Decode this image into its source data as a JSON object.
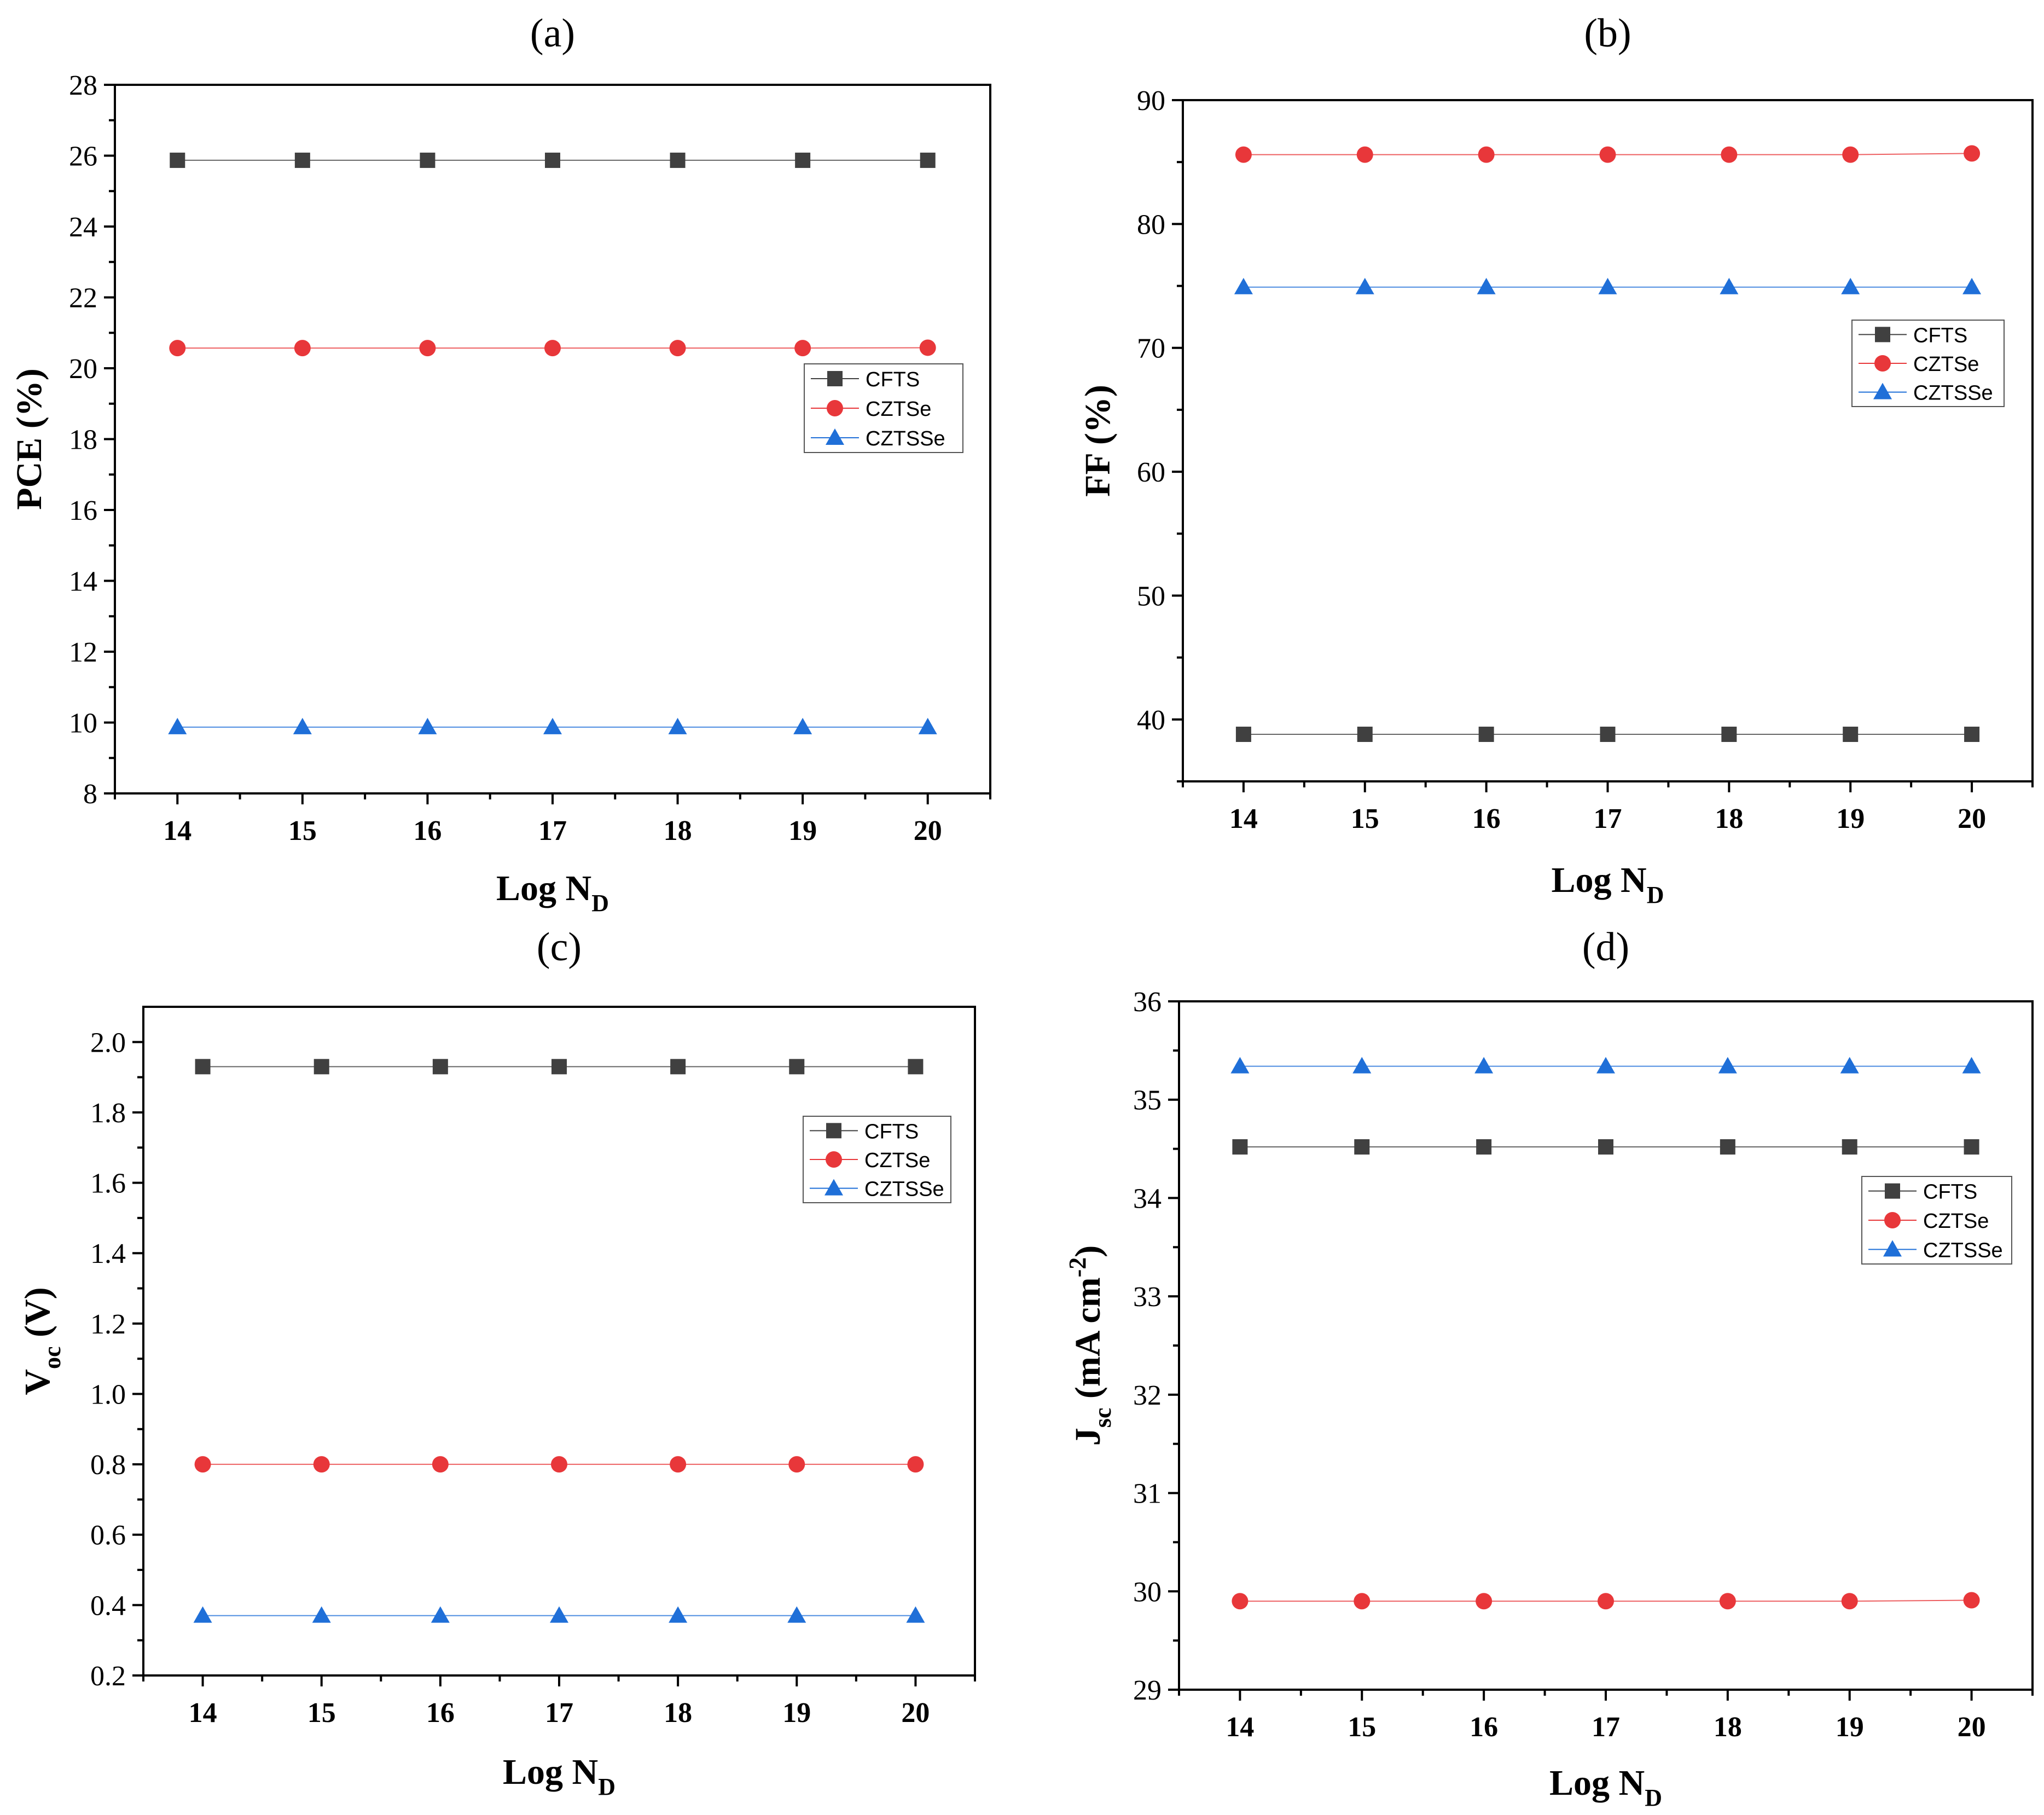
{
  "figure": {
    "panels": [
      "a",
      "b",
      "c",
      "d"
    ]
  },
  "colors": {
    "CFTS": "#404040",
    "CZTSe": "#e8373a",
    "CZTSSe": "#1f6fd8",
    "axis": "#000000"
  },
  "chart_data": [
    {
      "id": "a",
      "panel_label": "(a)",
      "type": "line",
      "title": "",
      "xlabel": "Log N",
      "xlabel_sub": "D",
      "ylabel": "PCE (%)",
      "x": [
        14,
        15,
        16,
        17,
        18,
        19,
        20
      ],
      "xlim": [
        13.5,
        20.5
      ],
      "ylim": [
        8,
        28
      ],
      "yticks": [
        8,
        10,
        12,
        14,
        16,
        18,
        20,
        22,
        24,
        26,
        28
      ],
      "ytick_labels": [
        "8",
        "10",
        "12",
        "14",
        "16",
        "18",
        "20",
        "22",
        "24",
        "26",
        "28"
      ],
      "legend_position": "center-right",
      "series": [
        {
          "name": "CFTS",
          "marker": "square",
          "values": [
            25.87,
            25.87,
            25.87,
            25.87,
            25.87,
            25.87,
            25.87
          ]
        },
        {
          "name": "CZTSe",
          "marker": "circle",
          "values": [
            20.57,
            20.57,
            20.57,
            20.57,
            20.57,
            20.57,
            20.58
          ]
        },
        {
          "name": "CZTSSe",
          "marker": "triangle",
          "values": [
            9.87,
            9.87,
            9.87,
            9.87,
            9.87,
            9.87,
            9.87
          ]
        }
      ]
    },
    {
      "id": "b",
      "panel_label": "(b)",
      "type": "line",
      "title": "",
      "xlabel": "Log N",
      "xlabel_sub": "D",
      "ylabel": "FF (%)",
      "x": [
        14,
        15,
        16,
        17,
        18,
        19,
        20
      ],
      "xlim": [
        13.5,
        20.5
      ],
      "ylim": [
        35,
        90
      ],
      "yticks": [
        40,
        50,
        60,
        70,
        80,
        90
      ],
      "ytick_labels": [
        "40",
        "50",
        "60",
        "70",
        "80",
        "90"
      ],
      "legend_position": "center-right",
      "series": [
        {
          "name": "CFTS",
          "marker": "square",
          "values": [
            38.8,
            38.8,
            38.8,
            38.8,
            38.8,
            38.8,
            38.8
          ]
        },
        {
          "name": "CZTSe",
          "marker": "circle",
          "values": [
            85.6,
            85.6,
            85.6,
            85.6,
            85.6,
            85.6,
            85.7
          ]
        },
        {
          "name": "CZTSSe",
          "marker": "triangle",
          "values": [
            74.9,
            74.9,
            74.9,
            74.9,
            74.9,
            74.9,
            74.9
          ]
        }
      ]
    },
    {
      "id": "c",
      "panel_label": "(c)",
      "type": "line",
      "title": "",
      "xlabel": "Log N",
      "xlabel_sub": "D",
      "ylabel": "V",
      "ylabel_sub": "oc",
      "ylabel_suffix": " (V)",
      "x": [
        14,
        15,
        16,
        17,
        18,
        19,
        20
      ],
      "xlim": [
        13.5,
        20.5
      ],
      "ylim": [
        0.2,
        2.1
      ],
      "yticks": [
        0.2,
        0.4,
        0.6,
        0.8,
        1.0,
        1.2,
        1.4,
        1.6,
        1.8,
        2.0
      ],
      "ytick_labels": [
        "0.2",
        "0.4",
        "0.6",
        "0.8",
        "1.0",
        "1.2",
        "1.4",
        "1.6",
        "1.8",
        "2.0"
      ],
      "legend_position": "top-right",
      "series": [
        {
          "name": "CFTS",
          "marker": "square",
          "values": [
            1.93,
            1.93,
            1.93,
            1.93,
            1.93,
            1.93,
            1.93
          ]
        },
        {
          "name": "CZTSe",
          "marker": "circle",
          "values": [
            0.8,
            0.8,
            0.8,
            0.8,
            0.8,
            0.8,
            0.8
          ]
        },
        {
          "name": "CZTSSe",
          "marker": "triangle",
          "values": [
            0.37,
            0.37,
            0.37,
            0.37,
            0.37,
            0.37,
            0.37
          ]
        }
      ]
    },
    {
      "id": "d",
      "panel_label": "(d)",
      "type": "line",
      "title": "",
      "xlabel": "Log N",
      "xlabel_sub": "D",
      "ylabel": "J",
      "ylabel_sub": "sc",
      "ylabel_suffix": " (mA cm",
      "ylabel_sup": "-2",
      "ylabel_end": ")",
      "x": [
        14,
        15,
        16,
        17,
        18,
        19,
        20
      ],
      "xlim": [
        13.5,
        20.5
      ],
      "ylim": [
        29,
        36
      ],
      "yticks": [
        29,
        30,
        31,
        32,
        33,
        34,
        35,
        36
      ],
      "ytick_labels": [
        "29",
        "30",
        "31",
        "32",
        "33",
        "34",
        "35",
        "36"
      ],
      "legend_position": "right",
      "series": [
        {
          "name": "CFTS",
          "marker": "square",
          "values": [
            34.52,
            34.52,
            34.52,
            34.52,
            34.52,
            34.52,
            34.52
          ]
        },
        {
          "name": "CZTSe",
          "marker": "circle",
          "values": [
            29.9,
            29.9,
            29.9,
            29.9,
            29.9,
            29.9,
            29.91
          ]
        },
        {
          "name": "CZTSSe",
          "marker": "triangle",
          "values": [
            35.34,
            35.34,
            35.34,
            35.34,
            35.34,
            35.34,
            35.34
          ]
        }
      ]
    }
  ]
}
